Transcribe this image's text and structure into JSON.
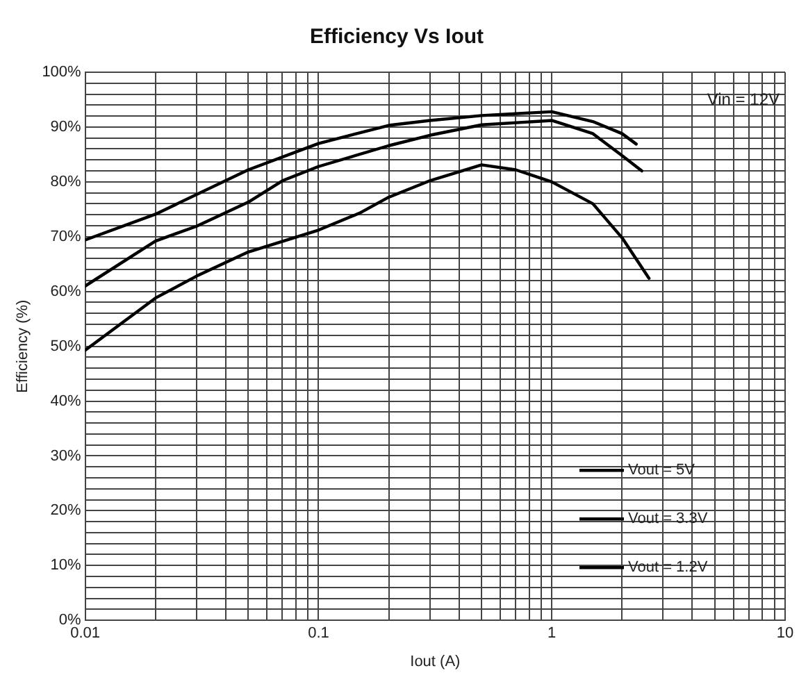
{
  "chart_data": {
    "type": "line",
    "title": "Efficiency Vs Iout",
    "xlabel": "Iout (A)",
    "ylabel": "Efficiency (%)",
    "log": "x",
    "xlim": [
      0.01,
      10
    ],
    "ylim": [
      0,
      100
    ],
    "xticks": [
      0.01,
      {
        "value": 0.02,
        "label": null
      },
      {
        "value": 0.03,
        "label": null
      },
      {
        "value": 0.04,
        "label": null
      },
      {
        "value": 0.05,
        "label": null
      },
      {
        "value": 0.06,
        "label": null
      },
      {
        "value": 0.07,
        "label": null
      },
      {
        "value": 0.08,
        "label": null
      },
      {
        "value": 0.09,
        "label": null
      },
      0.1,
      {
        "value": 0.2,
        "label": null
      },
      {
        "value": 0.3,
        "label": null
      },
      {
        "value": 0.4,
        "label": null
      },
      {
        "value": 0.5,
        "label": null
      },
      {
        "value": 0.6,
        "label": null
      },
      {
        "value": 0.7,
        "label": null
      },
      {
        "value": 0.8,
        "label": null
      },
      {
        "value": 0.9,
        "label": null
      },
      1,
      {
        "value": 2,
        "label": null
      },
      {
        "value": 3,
        "label": null
      },
      {
        "value": 4,
        "label": null
      },
      {
        "value": 5,
        "label": null
      },
      {
        "value": 6,
        "label": null
      },
      {
        "value": 7,
        "label": null
      },
      {
        "value": 8,
        "label": null
      },
      {
        "value": 9,
        "label": null
      },
      10
    ],
    "yticks": [
      {
        "value": 0,
        "label": "0%"
      },
      {
        "value": 2,
        "label": null
      },
      {
        "value": 4,
        "label": null
      },
      {
        "value": 6,
        "label": null
      },
      {
        "value": 8,
        "label": null
      },
      {
        "value": 10,
        "label": "10%"
      },
      {
        "value": 12,
        "label": null
      },
      {
        "value": 14,
        "label": null
      },
      {
        "value": 16,
        "label": null
      },
      {
        "value": 18,
        "label": null
      },
      {
        "value": 20,
        "label": "20%"
      },
      {
        "value": 22,
        "label": null
      },
      {
        "value": 24,
        "label": null
      },
      {
        "value": 26,
        "label": null
      },
      {
        "value": 28,
        "label": null
      },
      {
        "value": 30,
        "label": "30%"
      },
      {
        "value": 32,
        "label": null
      },
      {
        "value": 34,
        "label": null
      },
      {
        "value": 36,
        "label": null
      },
      {
        "value": 38,
        "label": null
      },
      {
        "value": 40,
        "label": "40%"
      },
      {
        "value": 42,
        "label": null
      },
      {
        "value": 44,
        "label": null
      },
      {
        "value": 46,
        "label": null
      },
      {
        "value": 48,
        "label": null
      },
      {
        "value": 50,
        "label": "50%"
      },
      {
        "value": 52,
        "label": null
      },
      {
        "value": 54,
        "label": null
      },
      {
        "value": 56,
        "label": null
      },
      {
        "value": 58,
        "label": null
      },
      {
        "value": 60,
        "label": "60%"
      },
      {
        "value": 62,
        "label": null
      },
      {
        "value": 64,
        "label": null
      },
      {
        "value": 66,
        "label": null
      },
      {
        "value": 68,
        "label": null
      },
      {
        "value": 70,
        "label": "70%"
      },
      {
        "value": 72,
        "label": null
      },
      {
        "value": 74,
        "label": null
      },
      {
        "value": 76,
        "label": null
      },
      {
        "value": 78,
        "label": null
      },
      {
        "value": 80,
        "label": "80%"
      },
      {
        "value": 82,
        "label": null
      },
      {
        "value": 84,
        "label": null
      },
      {
        "value": 86,
        "label": null
      },
      {
        "value": 88,
        "label": null
      },
      {
        "value": 90,
        "label": "90%"
      },
      {
        "value": 92,
        "label": null
      },
      {
        "value": 94,
        "label": null
      },
      {
        "value": 96,
        "label": null
      },
      {
        "value": 98,
        "label": null
      },
      {
        "value": 100,
        "label": "100%"
      }
    ],
    "grid": true,
    "legend": "bottom right",
    "marker": "none",
    "line_style": "solid",
    "annotations": [
      "Vin = 12V"
    ],
    "series": [
      {
        "name": "Vout = 5V",
        "color": "#000000",
        "x": [
          0.01,
          0.02,
          0.05,
          0.1,
          0.2,
          0.3,
          0.5,
          1,
          1.5,
          2,
          2.3
        ],
        "values": [
          69.4,
          74.1,
          82.2,
          87.0,
          90.3,
          91.2,
          92.1,
          92.8,
          91.0,
          88.8,
          86.9
        ]
      },
      {
        "name": "Vout = 3.3V",
        "color": "#000000",
        "x": [
          0.01,
          0.02,
          0.03,
          0.05,
          0.07,
          0.1,
          0.2,
          0.3,
          0.5,
          1,
          1.5,
          2,
          2.43
        ],
        "values": [
          61.0,
          69.2,
          71.9,
          76.3,
          80.2,
          82.8,
          86.6,
          88.5,
          90.4,
          91.2,
          88.8,
          84.8,
          82.0
        ]
      },
      {
        "name": "Vout = 1.2V",
        "color": "#000000",
        "x": [
          0.01,
          0.02,
          0.03,
          0.05,
          0.1,
          0.15,
          0.2,
          0.3,
          0.5,
          0.7,
          1,
          1.5,
          2,
          2.61
        ],
        "values": [
          49.3,
          58.8,
          62.8,
          67.2,
          71.2,
          74.3,
          77.2,
          80.2,
          83.1,
          82.2,
          80.0,
          76.0,
          69.8,
          62.4
        ]
      }
    ]
  }
}
